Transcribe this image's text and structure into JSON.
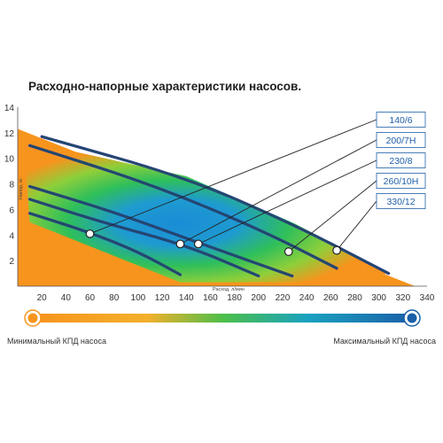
{
  "title": "Расходно-напорные характеристики насосов.",
  "chart_data": {
    "type": "line",
    "xlabel": "Расход, л/мин",
    "ylabel": "Напор, м",
    "xlim": [
      0,
      340
    ],
    "ylim": [
      0,
      14
    ],
    "x_ticks": [
      20,
      40,
      60,
      80,
      100,
      120,
      140,
      160,
      180,
      200,
      220,
      240,
      260,
      280,
      300,
      320,
      340
    ],
    "y_ticks": [
      2,
      4,
      6,
      8,
      10,
      12,
      14
    ],
    "grid": false,
    "series": [
      {
        "name": "140/6",
        "points": [
          [
            10,
            5.7
          ],
          [
            60,
            4.2
          ],
          [
            100,
            2.7
          ],
          [
            135,
            0.9
          ]
        ],
        "marker": [
          60,
          4.1
        ]
      },
      {
        "name": "200/7Н",
        "points": [
          [
            10,
            6.8
          ],
          [
            70,
            5.0
          ],
          [
            140,
            3.2
          ],
          [
            200,
            0.8
          ]
        ],
        "marker": [
          135,
          3.3
        ]
      },
      {
        "name": "230/8",
        "points": [
          [
            10,
            7.8
          ],
          [
            80,
            5.8
          ],
          [
            150,
            3.4
          ],
          [
            228,
            0.8
          ]
        ],
        "marker": [
          150,
          3.3
        ]
      },
      {
        "name": "260/10Н",
        "points": [
          [
            10,
            11.0
          ],
          [
            110,
            8.0
          ],
          [
            200,
            4.5
          ],
          [
            265,
            1.4
          ]
        ],
        "marker": [
          225,
          2.7
        ]
      },
      {
        "name": "330/12",
        "points": [
          [
            20,
            11.7
          ],
          [
            140,
            8.5
          ],
          [
            230,
            4.8
          ],
          [
            308,
            1.0
          ]
        ],
        "marker": [
          265,
          2.8
        ]
      }
    ],
    "legend_position": "right"
  },
  "scale": {
    "min_label": "Минимальный КПД насоса",
    "max_label": "Максимальный КПД насоса",
    "min_color": "#f7941d",
    "max_color": "#1a5fa8"
  },
  "colors": {
    "curve": "#2a3a8c",
    "curve_inner": "#17603a",
    "background": "#ffffff"
  }
}
